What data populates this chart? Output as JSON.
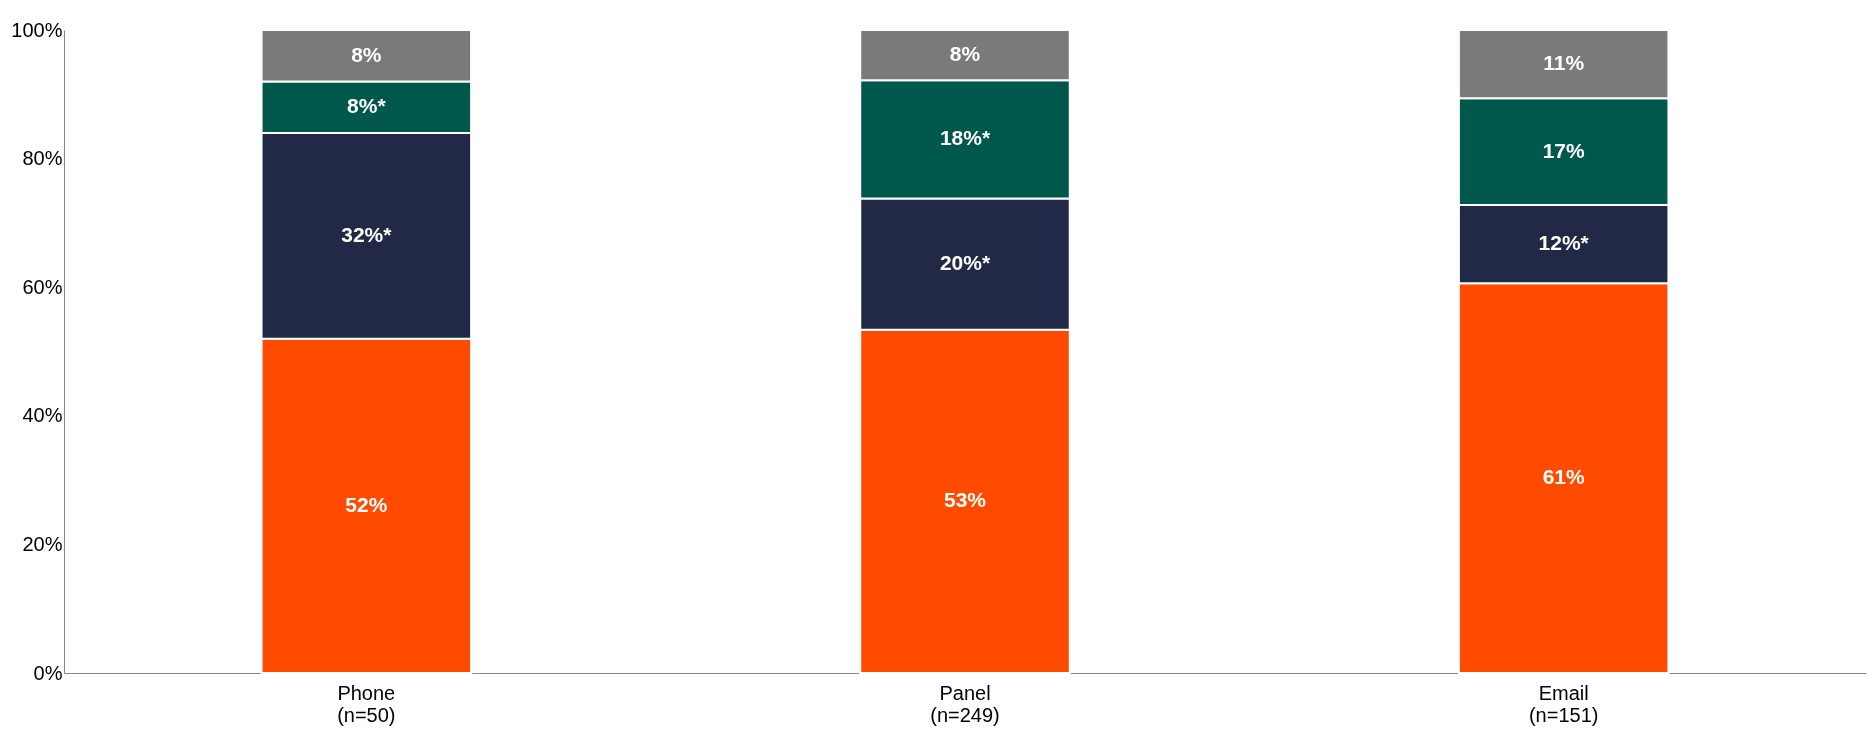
{
  "chart_data": {
    "type": "bar",
    "stacked": true,
    "categories": [
      "Phone\n(n=50)",
      "Panel\n(n=249)",
      "Email\n(n=151)"
    ],
    "series": [
      {
        "color": "#ff4b00",
        "values": [
          52,
          53.4,
          60.6
        ],
        "value_labels": [
          "52%",
          "53%",
          "61%"
        ]
      },
      {
        "color": "#212946",
        "values": [
          32,
          20.4,
          12.2
        ],
        "value_labels": [
          "32%*",
          "20%*",
          "12%*"
        ]
      },
      {
        "color": "#00574b",
        "values": [
          8,
          18.4,
          16.6
        ],
        "value_labels": [
          "8%*",
          "18%*",
          "17%"
        ]
      },
      {
        "color": "#7a7a7a",
        "values": [
          8,
          7.8,
          10.6
        ],
        "value_labels": [
          "8%",
          "8%",
          "11%"
        ]
      }
    ],
    "ylim": [
      0,
      100
    ],
    "yticks": [
      {
        "value": 0,
        "label": "0%"
      },
      {
        "value": 20,
        "label": "20%"
      },
      {
        "value": 40,
        "label": "40%"
      },
      {
        "value": 60,
        "label": "60%"
      },
      {
        "value": 80,
        "label": "80%"
      },
      {
        "value": 100,
        "label": "100%"
      }
    ],
    "grid": false
  }
}
